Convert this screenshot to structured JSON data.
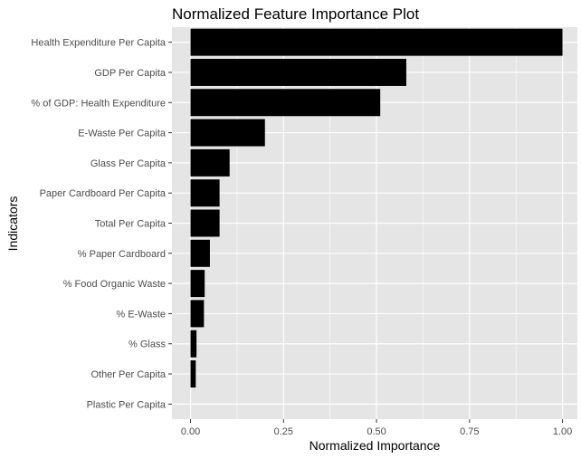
{
  "chart_data": {
    "type": "bar",
    "orientation": "horizontal",
    "title": "Normalized Feature Importance Plot",
    "xlabel": "Normalized Importance",
    "ylabel": "Indicators",
    "xlim": [
      -0.05,
      1.04
    ],
    "xticks": [
      0,
      0.25,
      0.5,
      0.75,
      1
    ],
    "xtick_labels": [
      "0.00",
      "0.25",
      "0.50",
      "0.75",
      "1.00"
    ],
    "categories": [
      "Health Expenditure Per Capita",
      "GDP Per Capita",
      "% of GDP: Health Expenditure",
      "E-Waste Per Capita",
      "Glass Per Capita",
      "Paper Cardboard Per Capita",
      "Total Per Capita",
      "% Paper Cardboard",
      "% Food Organic Waste",
      "% E-Waste",
      "% Glass",
      "Other Per Capita",
      "Plastic Per Capita"
    ],
    "values": [
      1.0,
      0.58,
      0.51,
      0.2,
      0.105,
      0.078,
      0.078,
      0.052,
      0.038,
      0.036,
      0.016,
      0.014,
      0.0
    ],
    "bar_color": "#000000",
    "panel_background": "#e5e5e5",
    "grid": true,
    "grid_color": "#ffffff",
    "legend": "none"
  }
}
